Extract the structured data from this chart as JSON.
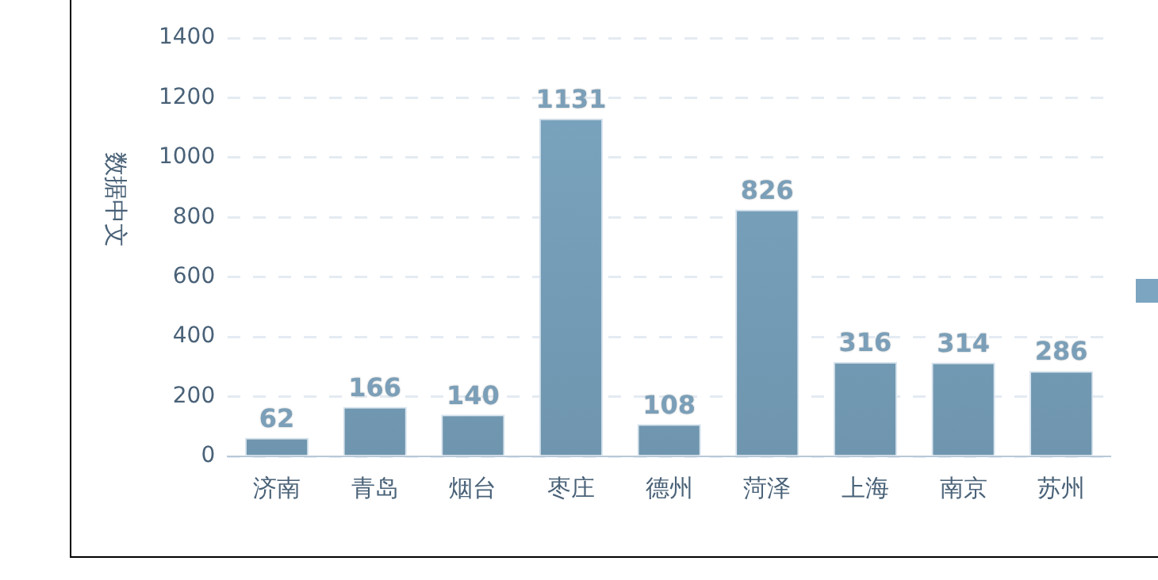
{
  "chart_data": {
    "type": "bar",
    "ylabel": "数据中文",
    "categories": [
      "济南",
      "青岛",
      "烟台",
      "枣庄",
      "德州",
      "菏泽",
      "上海",
      "南京",
      "苏州"
    ],
    "values": [
      62,
      166,
      140,
      1131,
      108,
      826,
      316,
      314,
      286
    ],
    "color": "#7ba5c0",
    "ylim": [
      0,
      1400
    ],
    "yticks": [
      0,
      200,
      400,
      600,
      800,
      1000,
      1200,
      1400
    ],
    "grid": "y",
    "data_labels": true
  }
}
